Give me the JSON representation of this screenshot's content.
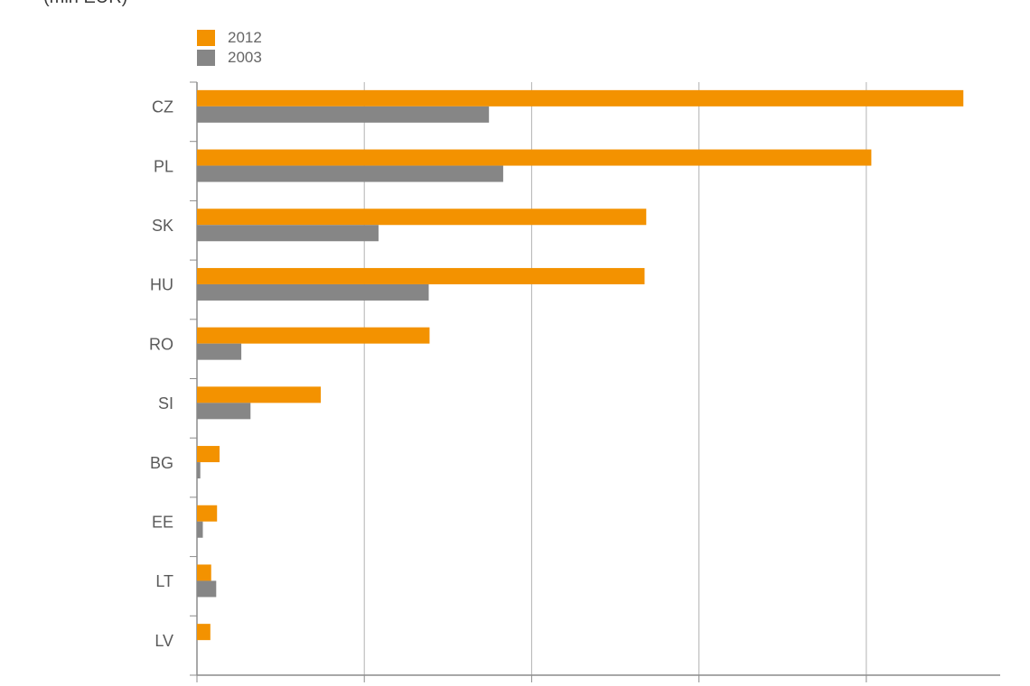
{
  "subtitle": "(mln EUR)",
  "colors": {
    "2012": "#f39200",
    "2003": "#868686",
    "grid": "#b3b3b3",
    "axis": "#8c8c8c"
  },
  "chart_data": {
    "type": "bar",
    "orientation": "horizontal",
    "ylabel": "(mln EUR)",
    "categories": [
      "CZ",
      "PL",
      "SK",
      "HU",
      "RO",
      "SI",
      "BG",
      "EE",
      "LT",
      "LV"
    ],
    "series": [
      {
        "name": "2012",
        "values": [
          4580,
          4030,
          2685,
          2675,
          1390,
          740,
          135,
          120,
          85,
          80
        ]
      },
      {
        "name": "2003",
        "values": [
          1745,
          1830,
          1085,
          1385,
          265,
          320,
          20,
          35,
          115,
          0
        ]
      }
    ],
    "xlim": [
      0,
      4800
    ],
    "grid": true,
    "legend_position": "top-left"
  }
}
